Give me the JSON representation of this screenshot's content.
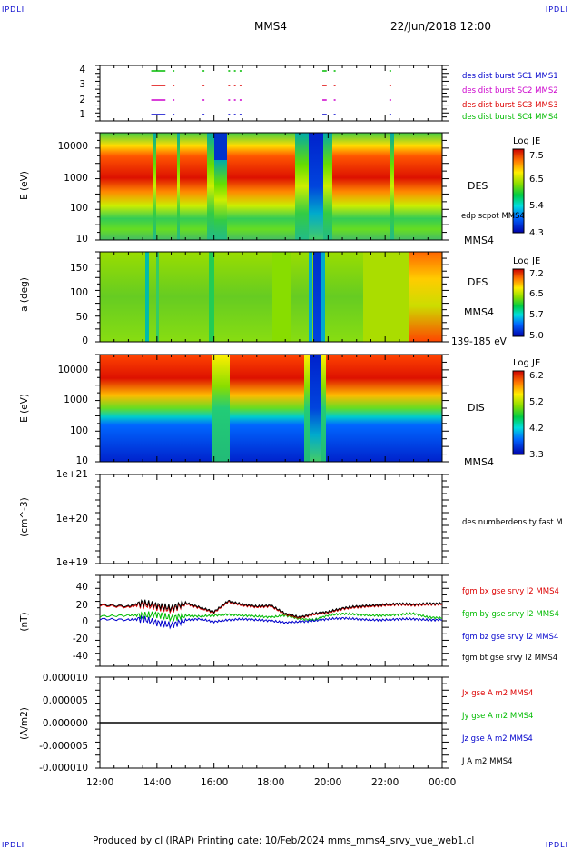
{
  "header": {
    "corner_tl": "IPDLI",
    "corner_tr": "IPDLI",
    "corner_bl": "IPDLI",
    "corner_br": "IPDLI",
    "spacecraft": "MMS4",
    "datetime": "22/Jun/2018 12:00"
  },
  "footer": {
    "text": "Produced by cl (IRAP)   Printing date: 10/Feb/2024   mms_mms4_srvy_vue_web1.cl"
  },
  "colors": {
    "sc1": "#0000cc",
    "sc2": "#cc00cc",
    "sc3": "#dd0000",
    "sc4": "#00bb00",
    "bx": "#dd0000",
    "by": "#00bb00",
    "bz": "#0000cc",
    "bt": "#000000"
  },
  "chart_data": [
    {
      "type": "scatter",
      "panel": "availability",
      "yticks": [
        "4",
        "3",
        "2",
        "1"
      ],
      "legend": [
        {
          "label": "des dist burst SC1 MMS1",
          "color": "#0000cc"
        },
        {
          "label": "des dist burst SC2 MMS2",
          "color": "#cc00cc"
        },
        {
          "label": "des dist burst SC3 MMS3",
          "color": "#dd0000"
        },
        {
          "label": "des dist burst SC4 MMS4",
          "color": "#00bb00"
        }
      ],
      "bursts_hours": [
        [
          13.8,
          14.3
        ],
        [
          14.55,
          14.6
        ],
        [
          15.6,
          15.65
        ],
        [
          16.5,
          16.55
        ],
        [
          16.7,
          16.75
        ],
        [
          16.9,
          16.95
        ],
        [
          19.8,
          19.95
        ],
        [
          20.2,
          20.25
        ],
        [
          22.15,
          22.2
        ]
      ]
    },
    {
      "type": "heatmap",
      "panel": "des-energy",
      "ylabel": "E (eV)",
      "yscale": "log",
      "ylim": [
        10,
        30000
      ],
      "yticks": [
        "10000",
        "1000",
        "100",
        "10"
      ],
      "right_label": "DES",
      "right_sub": "edp scpot MMS4",
      "right_bottom": "MMS4",
      "colorbar_title": "Log JE",
      "colorbar_ticks": [
        "7.5",
        "6.5",
        "5.4",
        "4.3"
      ]
    },
    {
      "type": "heatmap",
      "panel": "des-pitch",
      "ylabel": "a (deg)",
      "ylim": [
        0,
        180
      ],
      "yticks": [
        "150",
        "100",
        "50",
        "0"
      ],
      "right_label": "DES",
      "right_sub": "MMS4",
      "right_bottom": "139-185 eV",
      "colorbar_title": "Log JE",
      "colorbar_ticks": [
        "7.2",
        "6.5",
        "5.7",
        "5.0"
      ]
    },
    {
      "type": "heatmap",
      "panel": "dis-energy",
      "ylabel": "E (eV)",
      "yscale": "log",
      "ylim": [
        10,
        30000
      ],
      "yticks": [
        "10000",
        "1000",
        "100",
        "10"
      ],
      "right_label": "DIS",
      "right_bottom": "MMS4",
      "colorbar_title": "Log JE",
      "colorbar_ticks": [
        "6.2",
        "5.2",
        "4.2",
        "3.3"
      ]
    },
    {
      "type": "line",
      "panel": "density",
      "ylabel": "(cm^-3)",
      "yscale": "log",
      "yticks": [
        "1e+21",
        "1e+20",
        "1e+19"
      ],
      "legend": [
        {
          "label": "des numberdensity fast M",
          "color": "#000000"
        }
      ],
      "series": []
    },
    {
      "type": "line",
      "panel": "magnetic-field",
      "ylabel": "(nT)",
      "ylim": [
        -50,
        50
      ],
      "yticks": [
        "40",
        "20",
        "0",
        "-20",
        "-40"
      ],
      "legend": [
        {
          "label": "fgm bx gse srvy l2 MMS4",
          "color": "#dd0000"
        },
        {
          "label": "fgm by gse srvy l2 MMS4",
          "color": "#00bb00"
        },
        {
          "label": "fgm bz gse srvy l2 MMS4",
          "color": "#0000cc"
        },
        {
          "label": "fgm bt gse srvy l2 MMS4",
          "color": "#000000"
        }
      ],
      "x_hours": [
        12,
        13,
        13.5,
        14,
        14.5,
        15,
        15.5,
        16,
        16.5,
        17,
        17.5,
        18,
        18.5,
        19,
        19.5,
        20,
        20.5,
        21,
        21.5,
        22,
        22.5,
        23,
        23.5,
        24
      ],
      "series": [
        {
          "key": "bt",
          "values": [
            18,
            16,
            20,
            17,
            14,
            20,
            15,
            10,
            22,
            18,
            16,
            17,
            8,
            4,
            8,
            10,
            14,
            16,
            17,
            18,
            19,
            18,
            19,
            19
          ]
        },
        {
          "key": "bx",
          "values": [
            17,
            15,
            18,
            15,
            12,
            19,
            14,
            9,
            21,
            17,
            15,
            16,
            7,
            3,
            7,
            9,
            13,
            15,
            16,
            17,
            18,
            17,
            18,
            18
          ]
        },
        {
          "key": "by",
          "values": [
            5,
            6,
            6,
            7,
            3,
            6,
            5,
            6,
            7,
            6,
            5,
            4,
            6,
            2,
            1,
            6,
            8,
            7,
            6,
            6,
            7,
            8,
            4,
            3
          ]
        },
        {
          "key": "bz",
          "values": [
            2,
            1,
            2,
            -2,
            -5,
            1,
            2,
            -1,
            1,
            2,
            1,
            0,
            -2,
            -1,
            0,
            2,
            3,
            2,
            1,
            1,
            2,
            2,
            1,
            1
          ]
        }
      ]
    },
    {
      "type": "line",
      "panel": "current-density",
      "ylabel": "(A/m2)",
      "ylim": [
        -1e-05,
        1e-05
      ],
      "yticks": [
        "0.000010",
        "0.000005",
        "0.000000",
        "-0.000005",
        "-0.000010"
      ],
      "legend": [
        {
          "label": "Jx gse A m2 MMS4",
          "color": "#dd0000"
        },
        {
          "label": "Jy gse A m2 MMS4",
          "color": "#00bb00"
        },
        {
          "label": "Jz gse A m2 MMS4",
          "color": "#0000cc"
        },
        {
          "label": "J A m2 MMS4",
          "color": "#000000"
        }
      ],
      "series": [
        {
          "key": "J",
          "values": [
            0,
            0
          ]
        }
      ]
    }
  ],
  "xaxis": {
    "xlim_hours": [
      12,
      24
    ],
    "ticks": [
      "12:00",
      "14:00",
      "16:00",
      "18:00",
      "20:00",
      "22:00",
      "00:00"
    ]
  }
}
